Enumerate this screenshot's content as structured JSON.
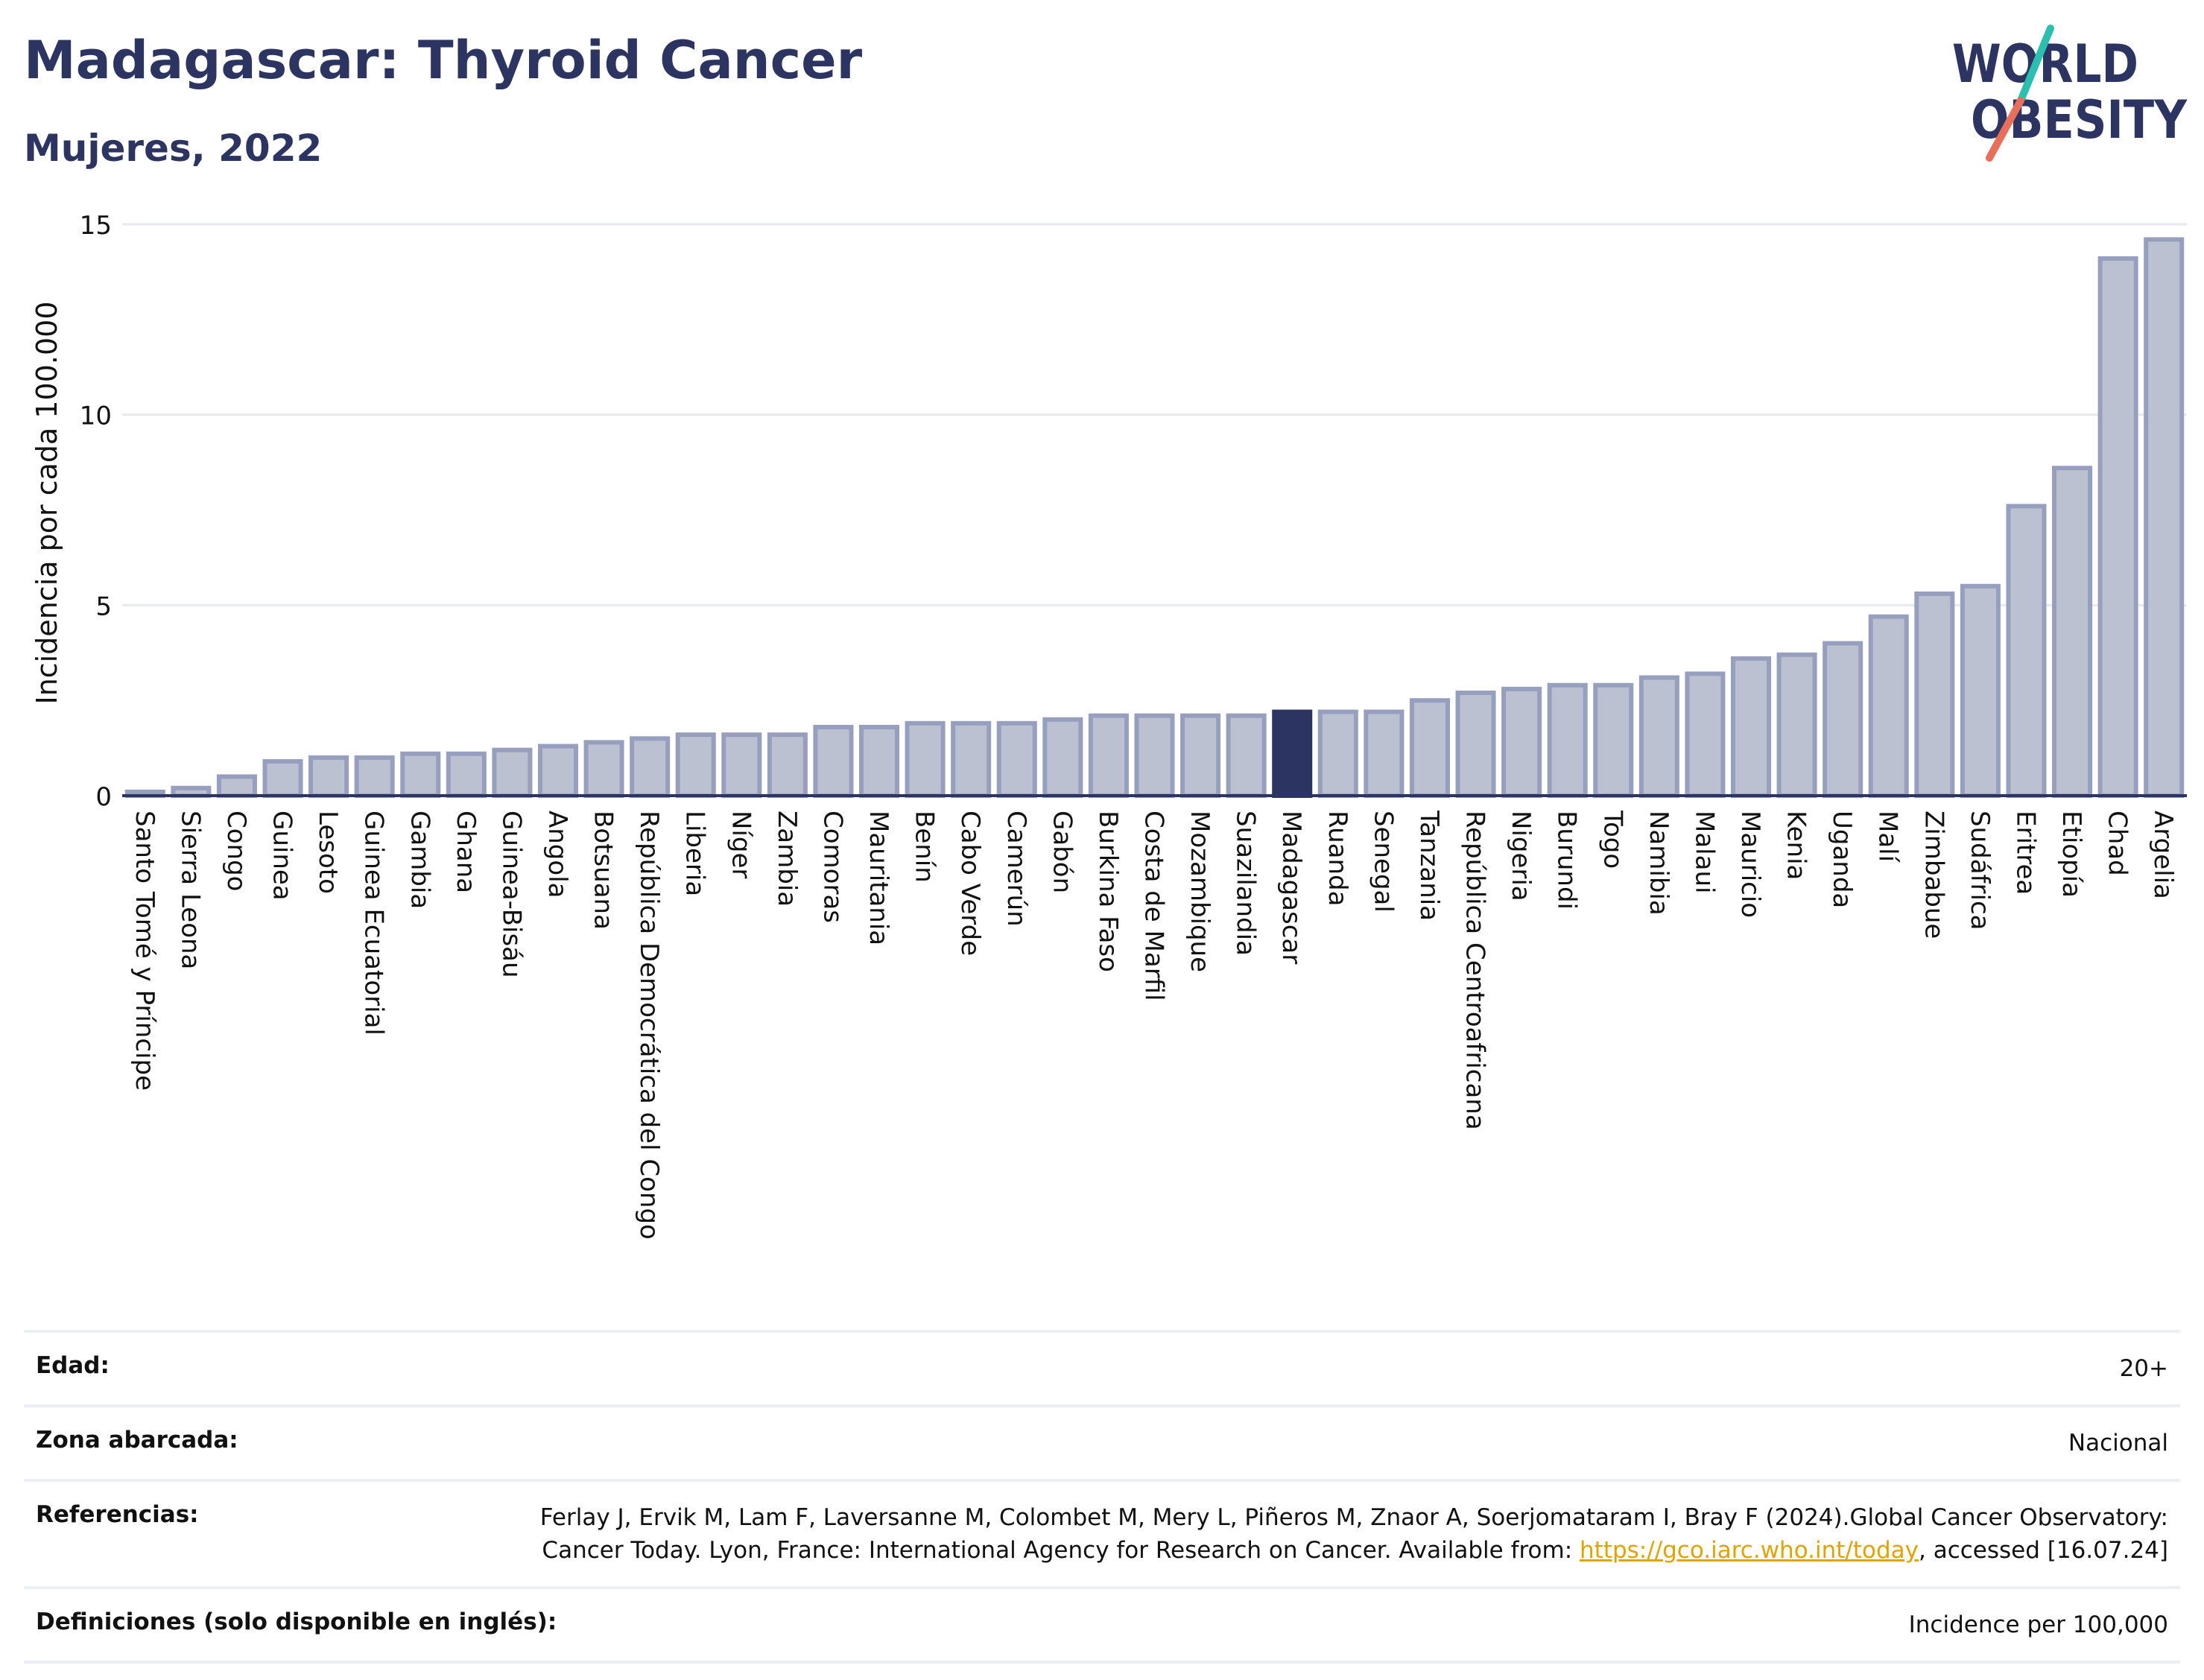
{
  "header": {
    "title": "Madagascar: Thyroid Cancer",
    "subtitle": "Mujeres, 2022"
  },
  "logo": {
    "line1": "WORLD",
    "line2": "OBESITY",
    "colors": {
      "text": "#2c3562",
      "slash_top": "#2bbfb0",
      "slash_bottom": "#e8705a"
    }
  },
  "chart_data": {
    "type": "bar",
    "ylabel": "Incidencia por cada 100.000",
    "xlabel": "",
    "ylim": [
      0,
      15
    ],
    "yticks": [
      0,
      5,
      10,
      15
    ],
    "grid": true,
    "highlight": "Madagascar",
    "colors": {
      "bar": "#bcc1d1",
      "bar_edge": "#979fbe",
      "highlight": "#2c3562",
      "grid": "#e7e9f0",
      "axis": "#2c3562"
    },
    "categories": [
      "Santo Tomé y Príncipe",
      "Sierra Leona",
      "Congo",
      "Guinea",
      "Lesoto",
      "Guinea Ecuatorial",
      "Gambia",
      "Ghana",
      "Guinea-Bisáu",
      "Angola",
      "Botsuana",
      "República Democrática del Congo",
      "Liberia",
      "Níger",
      "Zambia",
      "Comoras",
      "Mauritania",
      "Benín",
      "Cabo Verde",
      "Camerún",
      "Gabón",
      "Burkina Faso",
      "Costa de Marfil",
      "Mozambique",
      "Suazilandia",
      "Madagascar",
      "Ruanda",
      "Senegal",
      "Tanzania",
      "República Centroafricana",
      "Nigeria",
      "Burundi",
      "Togo",
      "Namibia",
      "Malaui",
      "Mauricio",
      "Kenia",
      "Uganda",
      "Malí",
      "Zimbabue",
      "Sudáfrica",
      "Eritrea",
      "Etiopía",
      "Chad",
      "Argelia"
    ],
    "values": [
      0.1,
      0.2,
      0.5,
      0.9,
      1.0,
      1.0,
      1.1,
      1.1,
      1.2,
      1.3,
      1.4,
      1.5,
      1.6,
      1.6,
      1.6,
      1.8,
      1.8,
      1.9,
      1.9,
      1.9,
      2.0,
      2.1,
      2.1,
      2.1,
      2.1,
      2.2,
      2.2,
      2.2,
      2.5,
      2.7,
      2.8,
      2.9,
      2.9,
      3.1,
      3.2,
      3.6,
      3.7,
      4.0,
      4.7,
      5.3,
      5.5,
      7.6,
      8.6,
      14.1,
      14.6
    ]
  },
  "metadata": [
    {
      "label": "Edad:",
      "value": "20+"
    },
    {
      "label": "Zona abarcada:",
      "value": "Nacional"
    },
    {
      "label": "Referencias:",
      "value_before": "Ferlay J, Ervik M, Lam F, Laversanne M, Colombet M, Mery L, Piñeros M, Znaor A, Soerjomataram I, Bray F (2024).Global Cancer Observatory: Cancer Today. Lyon, France: International Agency for Research on Cancer. Available from: ",
      "link": "https://gco.iarc.who.int/today",
      "value_after": ", accessed [16.07.24]"
    },
    {
      "label": "Definiciones (solo disponible en inglés):",
      "value": "Incidence per 100,000"
    }
  ]
}
